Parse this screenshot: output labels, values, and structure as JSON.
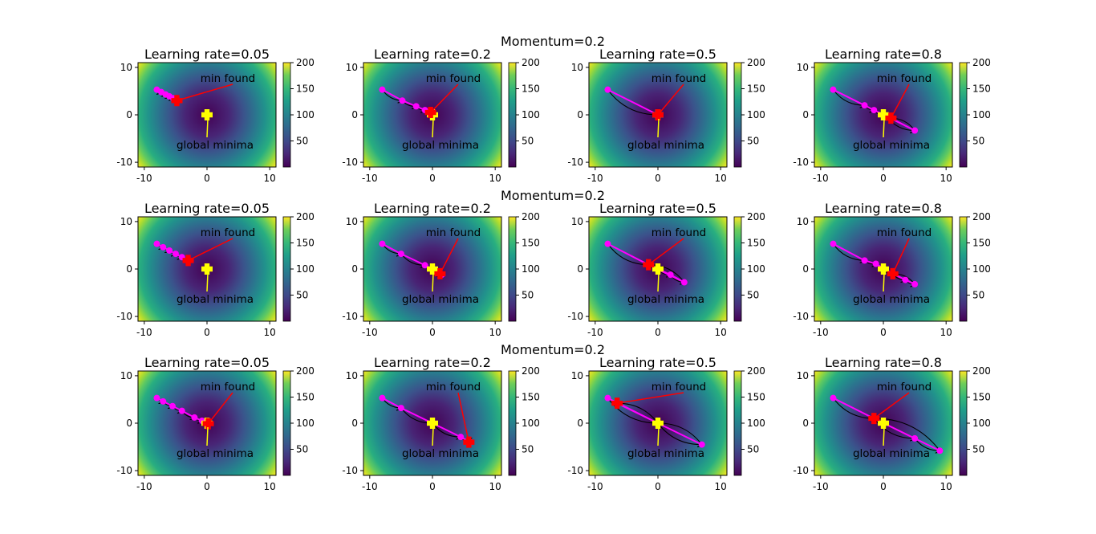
{
  "figure": {
    "row_titles": [
      "Momentum=0.2",
      "Momentum=0.2",
      "Momentum=0.2"
    ],
    "colors": {
      "path": "#ff00ff",
      "min_marker": "#ff0000",
      "global_marker": "#ffff00",
      "step_arrows": "#000000",
      "min_annotation_arrow": "#ff0000",
      "global_annotation_arrow": "#ffff00",
      "colormap": "viridis"
    }
  },
  "chart_data": [
    {
      "type": "heatmap",
      "function": "x^2+y^2",
      "title": "Learning rate=0.05",
      "xlim": [
        -11,
        11
      ],
      "ylim": [
        -11,
        11
      ],
      "xticks": [
        -10,
        0,
        10
      ],
      "yticks": [
        -10,
        0,
        10
      ],
      "colorbar": {
        "ticks": [
          50,
          100,
          150,
          200
        ],
        "range": [
          0,
          200
        ]
      },
      "annotations": [
        {
          "text": "min found"
        },
        {
          "text": "global minima"
        }
      ],
      "global_minimum": [
        0,
        0
      ],
      "min_found": [
        -4.8,
        3.0
      ],
      "path": [
        [
          -8,
          5.3
        ],
        [
          -7.3,
          4.8
        ],
        [
          -6.6,
          4.3
        ],
        [
          -6,
          3.9
        ],
        [
          -5.4,
          3.5
        ],
        [
          -4.8,
          3.0
        ]
      ]
    },
    {
      "type": "heatmap",
      "function": "x^2+y^2",
      "title": "Learning rate=0.2",
      "xlim": [
        -11,
        11
      ],
      "ylim": [
        -11,
        11
      ],
      "xticks": [
        -10,
        0,
        10
      ],
      "yticks": [
        -10,
        0,
        10
      ],
      "colorbar": {
        "ticks": [
          50,
          100,
          150,
          200
        ],
        "range": [
          0,
          200
        ]
      },
      "annotations": [
        {
          "text": "min found"
        },
        {
          "text": "global minima"
        }
      ],
      "global_minimum": [
        0,
        0
      ],
      "min_found": [
        -0.3,
        0.5
      ],
      "path": [
        [
          -8,
          5.3
        ],
        [
          -4.8,
          3.0
        ],
        [
          -2.6,
          1.8
        ],
        [
          -1.2,
          1.0
        ],
        [
          -0.3,
          0.5
        ]
      ]
    },
    {
      "type": "heatmap",
      "function": "x^2+y^2",
      "title": "Learning rate=0.5",
      "xlim": [
        -11,
        11
      ],
      "ylim": [
        -11,
        11
      ],
      "xticks": [
        -10,
        0,
        10
      ],
      "yticks": [
        -10,
        0,
        10
      ],
      "colorbar": {
        "ticks": [
          50,
          100,
          150,
          200
        ],
        "range": [
          0,
          200
        ]
      },
      "annotations": [
        {
          "text": "min found"
        },
        {
          "text": "global minima"
        }
      ],
      "global_minimum": [
        0,
        0
      ],
      "min_found": [
        0,
        0
      ],
      "path": [
        [
          -8,
          5.3
        ],
        [
          0,
          0
        ]
      ]
    },
    {
      "type": "heatmap",
      "function": "x^2+y^2",
      "title": "Learning rate=0.8",
      "xlim": [
        -11,
        11
      ],
      "ylim": [
        -11,
        11
      ],
      "xticks": [
        -10,
        0,
        10
      ],
      "yticks": [
        -10,
        0,
        10
      ],
      "colorbar": {
        "ticks": [
          50,
          100,
          150,
          200
        ],
        "range": [
          0,
          200
        ]
      },
      "annotations": [
        {
          "text": "min found"
        },
        {
          "text": "global minima"
        }
      ],
      "global_minimum": [
        0,
        0
      ],
      "min_found": [
        1.2,
        -0.7
      ],
      "path": [
        [
          -8,
          5.3
        ],
        [
          -3,
          2
        ],
        [
          -1.5,
          1
        ],
        [
          0.5,
          -0.3
        ],
        [
          5,
          -3.3
        ],
        [
          1.2,
          -0.7
        ]
      ]
    },
    {
      "type": "heatmap",
      "function": "x^2+y^2",
      "title": "Learning rate=0.05",
      "xlim": [
        -11,
        11
      ],
      "ylim": [
        -11,
        11
      ],
      "xticks": [
        -10,
        0,
        10
      ],
      "yticks": [
        -10,
        0,
        10
      ],
      "colorbar": {
        "ticks": [
          50,
          100,
          150,
          200
        ],
        "range": [
          0,
          200
        ]
      },
      "annotations": [
        {
          "text": "min found"
        },
        {
          "text": "global minima"
        }
      ],
      "global_minimum": [
        0,
        0
      ],
      "min_found": [
        -3,
        1.8
      ],
      "path": [
        [
          -8,
          5.3
        ],
        [
          -7,
          4.6
        ],
        [
          -6,
          3.9
        ],
        [
          -5,
          3.2
        ],
        [
          -4,
          2.5
        ],
        [
          -3,
          1.8
        ]
      ]
    },
    {
      "type": "heatmap",
      "function": "x^2+y^2",
      "title": "Learning rate=0.2",
      "xlim": [
        -11,
        11
      ],
      "ylim": [
        -11,
        11
      ],
      "xticks": [
        -10,
        0,
        10
      ],
      "yticks": [
        -10,
        0,
        10
      ],
      "colorbar": {
        "ticks": [
          50,
          100,
          150,
          200
        ],
        "range": [
          0,
          200
        ]
      },
      "annotations": [
        {
          "text": "min found"
        },
        {
          "text": "global minima"
        }
      ],
      "global_minimum": [
        0,
        0
      ],
      "min_found": [
        1.2,
        -1
      ],
      "path": [
        [
          -8,
          5.3
        ],
        [
          -5,
          3.2
        ],
        [
          -1.2,
          0.8
        ],
        [
          0.5,
          -0.4
        ],
        [
          1.5,
          -1.2
        ],
        [
          1.2,
          -1
        ]
      ]
    },
    {
      "type": "heatmap",
      "function": "x^2+y^2",
      "title": "Learning rate=0.5",
      "xlim": [
        -11,
        11
      ],
      "ylim": [
        -11,
        11
      ],
      "xticks": [
        -10,
        0,
        10
      ],
      "yticks": [
        -10,
        0,
        10
      ],
      "colorbar": {
        "ticks": [
          50,
          100,
          150,
          200
        ],
        "range": [
          0,
          200
        ]
      },
      "annotations": [
        {
          "text": "min found"
        },
        {
          "text": "global minima"
        }
      ],
      "global_minimum": [
        0,
        0
      ],
      "min_found": [
        -1.5,
        0.9
      ],
      "path": [
        [
          -8,
          5.3
        ],
        [
          -1.5,
          0.9
        ],
        [
          0,
          0
        ],
        [
          2,
          -1.2
        ],
        [
          4.2,
          -2.8
        ],
        [
          -1.5,
          0.9
        ]
      ]
    },
    {
      "type": "heatmap",
      "function": "x^2+y^2",
      "title": "Learning rate=0.8",
      "xlim": [
        -11,
        11
      ],
      "ylim": [
        -11,
        11
      ],
      "xticks": [
        -10,
        0,
        10
      ],
      "yticks": [
        -10,
        0,
        10
      ],
      "colorbar": {
        "ticks": [
          50,
          100,
          150,
          200
        ],
        "range": [
          0,
          200
        ]
      },
      "annotations": [
        {
          "text": "min found"
        },
        {
          "text": "global minima"
        }
      ],
      "global_minimum": [
        0,
        0
      ],
      "min_found": [
        1.5,
        -1
      ],
      "path": [
        [
          -8,
          5.3
        ],
        [
          -3,
          1.8
        ],
        [
          -1.2,
          1.1
        ],
        [
          1.5,
          -1
        ],
        [
          3.5,
          -2.3
        ],
        [
          5,
          -3.2
        ],
        [
          1.5,
          -1
        ]
      ]
    },
    {
      "type": "heatmap",
      "function": "x^2+y^2",
      "title": "Learning rate=0.05",
      "xlim": [
        -11,
        11
      ],
      "ylim": [
        -11,
        11
      ],
      "xticks": [
        -10,
        0,
        10
      ],
      "yticks": [
        -10,
        0,
        10
      ],
      "colorbar": {
        "ticks": [
          50,
          100,
          150,
          200
        ],
        "range": [
          0,
          200
        ]
      },
      "annotations": [
        {
          "text": "min found"
        },
        {
          "text": "global minima"
        }
      ],
      "global_minimum": [
        0,
        0
      ],
      "min_found": [
        0.2,
        -0.1
      ],
      "path": [
        [
          -8,
          5.3
        ],
        [
          -7,
          4.6
        ],
        [
          -5.5,
          3.6
        ],
        [
          -4,
          2.6
        ],
        [
          -2,
          1.2
        ],
        [
          -0.8,
          0.5
        ],
        [
          0.2,
          -0.1
        ]
      ]
    },
    {
      "type": "heatmap",
      "function": "x^2+y^2",
      "title": "Learning rate=0.2",
      "xlim": [
        -11,
        11
      ],
      "ylim": [
        -11,
        11
      ],
      "xticks": [
        -10,
        0,
        10
      ],
      "yticks": [
        -10,
        0,
        10
      ],
      "colorbar": {
        "ticks": [
          50,
          100,
          150,
          200
        ],
        "range": [
          0,
          200
        ]
      },
      "annotations": [
        {
          "text": "min found"
        },
        {
          "text": "global minima"
        }
      ],
      "global_minimum": [
        0,
        0
      ],
      "min_found": [
        5.8,
        -4
      ],
      "path": [
        [
          -8,
          5.3
        ],
        [
          -5,
          3.2
        ],
        [
          0,
          0
        ],
        [
          4.5,
          -2.9
        ],
        [
          6,
          -4
        ],
        [
          5.8,
          -4
        ]
      ]
    },
    {
      "type": "heatmap",
      "function": "x^2+y^2",
      "title": "Learning rate=0.5",
      "xlim": [
        -11,
        11
      ],
      "ylim": [
        -11,
        11
      ],
      "xticks": [
        -10,
        0,
        10
      ],
      "yticks": [
        -10,
        0,
        10
      ],
      "colorbar": {
        "ticks": [
          50,
          100,
          150,
          200
        ],
        "range": [
          0,
          200
        ]
      },
      "annotations": [
        {
          "text": "min found"
        },
        {
          "text": "global minima"
        }
      ],
      "global_minimum": [
        0,
        0
      ],
      "min_found": [
        -6.5,
        4.2
      ],
      "path": [
        [
          -8,
          5.3
        ],
        [
          0,
          0
        ],
        [
          7,
          -4.5
        ],
        [
          0,
          0
        ],
        [
          -6.5,
          4.2
        ]
      ]
    },
    {
      "type": "heatmap",
      "function": "x^2+y^2",
      "title": "Learning rate=0.8",
      "xlim": [
        -11,
        11
      ],
      "ylim": [
        -11,
        11
      ],
      "xticks": [
        -10,
        0,
        10
      ],
      "yticks": [
        -10,
        0,
        10
      ],
      "colorbar": {
        "ticks": [
          50,
          100,
          150,
          200
        ],
        "range": [
          0,
          200
        ]
      },
      "annotations": [
        {
          "text": "min found"
        },
        {
          "text": "global minima"
        }
      ],
      "global_minimum": [
        0,
        0
      ],
      "min_found": [
        -1.5,
        1
      ],
      "path": [
        [
          -8,
          5.3
        ],
        [
          -1.5,
          1
        ],
        [
          5,
          -3.2
        ],
        [
          9,
          -5.8
        ],
        [
          -1.5,
          1
        ]
      ]
    }
  ]
}
